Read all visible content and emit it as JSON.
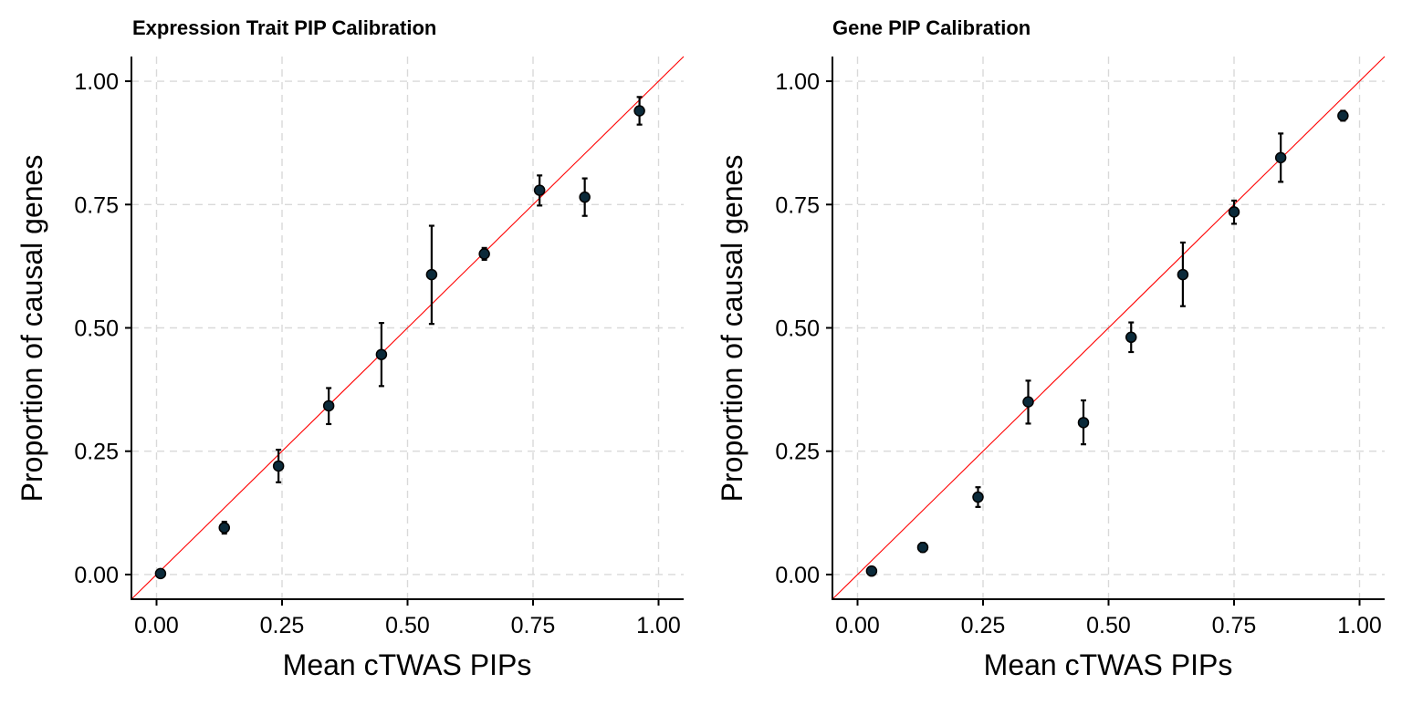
{
  "chart_data": [
    {
      "type": "scatter",
      "title": "Expression Trait PIP Calibration",
      "xlabel": "Mean cTWAS PIPs",
      "ylabel": "Proportion of causal genes",
      "xlim": [
        -0.05,
        1.05
      ],
      "ylim": [
        -0.05,
        1.05
      ],
      "xticks": [
        "0.00",
        "0.25",
        "0.50",
        "0.75",
        "1.00"
      ],
      "yticks": [
        "0.00",
        "0.25",
        "0.50",
        "0.75",
        "1.00"
      ],
      "reference_line": "y = x",
      "reference_color": "#ff0000",
      "point_color": "#0b2a3a",
      "grid": true,
      "points": [
        {
          "x": 0.008,
          "y": 0.002,
          "lo": 0.0,
          "hi": 0.004
        },
        {
          "x": 0.135,
          "y": 0.095,
          "lo": 0.083,
          "hi": 0.107
        },
        {
          "x": 0.243,
          "y": 0.22,
          "lo": 0.187,
          "hi": 0.253
        },
        {
          "x": 0.343,
          "y": 0.342,
          "lo": 0.305,
          "hi": 0.378
        },
        {
          "x": 0.448,
          "y": 0.446,
          "lo": 0.382,
          "hi": 0.51
        },
        {
          "x": 0.548,
          "y": 0.608,
          "lo": 0.508,
          "hi": 0.707
        },
        {
          "x": 0.653,
          "y": 0.65,
          "lo": 0.638,
          "hi": 0.662
        },
        {
          "x": 0.763,
          "y": 0.779,
          "lo": 0.748,
          "hi": 0.809
        },
        {
          "x": 0.853,
          "y": 0.765,
          "lo": 0.727,
          "hi": 0.803
        },
        {
          "x": 0.962,
          "y": 0.94,
          "lo": 0.912,
          "hi": 0.968
        }
      ]
    },
    {
      "type": "scatter",
      "title": "Gene PIP Calibration",
      "xlabel": "Mean cTWAS PIPs",
      "ylabel": "Proportion of causal genes",
      "xlim": [
        -0.05,
        1.05
      ],
      "ylim": [
        -0.05,
        1.05
      ],
      "xticks": [
        "0.00",
        "0.25",
        "0.50",
        "0.75",
        "1.00"
      ],
      "yticks": [
        "0.00",
        "0.25",
        "0.50",
        "0.75",
        "1.00"
      ],
      "reference_line": "y = x",
      "reference_color": "#ff0000",
      "point_color": "#0b2a3a",
      "grid": true,
      "points": [
        {
          "x": 0.028,
          "y": 0.007,
          "lo": 0.003,
          "hi": 0.011
        },
        {
          "x": 0.13,
          "y": 0.055,
          "lo": 0.046,
          "hi": 0.064
        },
        {
          "x": 0.24,
          "y": 0.157,
          "lo": 0.137,
          "hi": 0.177
        },
        {
          "x": 0.34,
          "y": 0.35,
          "lo": 0.306,
          "hi": 0.393
        },
        {
          "x": 0.45,
          "y": 0.308,
          "lo": 0.264,
          "hi": 0.353
        },
        {
          "x": 0.545,
          "y": 0.481,
          "lo": 0.451,
          "hi": 0.511
        },
        {
          "x": 0.648,
          "y": 0.608,
          "lo": 0.544,
          "hi": 0.673
        },
        {
          "x": 0.75,
          "y": 0.735,
          "lo": 0.711,
          "hi": 0.758
        },
        {
          "x": 0.843,
          "y": 0.845,
          "lo": 0.796,
          "hi": 0.894
        },
        {
          "x": 0.967,
          "y": 0.93,
          "lo": 0.92,
          "hi": 0.94
        }
      ]
    }
  ]
}
